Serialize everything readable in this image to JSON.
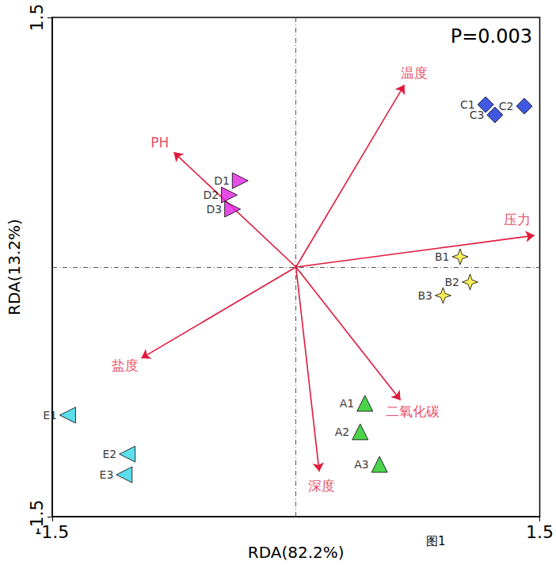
{
  "chart_data": {
    "type": "scatter",
    "annotation": "P=0.003",
    "caption": "图1",
    "x_label": "RDA(82.2%)",
    "y_label": "RDA(13.2%)",
    "xlim": [
      -1.5,
      1.5
    ],
    "ylim": [
      -1.5,
      1.5
    ],
    "xticks": [
      -1.5,
      1.5
    ],
    "yticks": [
      -1.5,
      1.5
    ],
    "grid": false,
    "series": [
      {
        "labels": [
          "A1",
          "A2",
          "A3"
        ],
        "x": [
          0.424,
          0.395,
          0.514
        ],
        "y": [
          -0.819,
          -0.99,
          -1.186
        ],
        "color": "#1ec81e",
        "marker": "triangle-up"
      },
      {
        "labels": [
          "B1",
          "B2",
          "B3"
        ],
        "x": [
          1.01,
          1.071,
          0.905
        ],
        "y": [
          0.062,
          -0.09,
          -0.171
        ],
        "color": "#ffee33",
        "marker": "star"
      },
      {
        "labels": [
          "C1",
          "C2",
          "C3"
        ],
        "x": [
          1.167,
          1.405,
          1.224
        ],
        "y": [
          0.976,
          0.967,
          0.914
        ],
        "color": "#1030d8",
        "marker": "diamond"
      },
      {
        "labels": [
          "D1",
          "D2",
          "D3"
        ],
        "x": [
          -0.343,
          -0.41,
          -0.39
        ],
        "y": [
          0.519,
          0.433,
          0.348
        ],
        "color": "#e020e0",
        "marker": "triangle-right"
      },
      {
        "labels": [
          "E1",
          "E2",
          "E3"
        ],
        "x": [
          -1.405,
          -1.038,
          -1.057
        ],
        "y": [
          -0.89,
          -1.124,
          -1.248
        ],
        "color": "#33d6e6",
        "marker": "triangle-left"
      }
    ],
    "arrows": {
      "color": "#e0193c",
      "labels": [
        "温度",
        "PH",
        "压力",
        "盐度",
        "二氧化碳",
        "深度"
      ],
      "x": [
        0.667,
        -0.752,
        1.467,
        -0.952,
        0.643,
        0.143
      ],
      "y": [
        1.095,
        0.69,
        0.19,
        -0.548,
        -0.8,
        -1.229
      ]
    }
  }
}
